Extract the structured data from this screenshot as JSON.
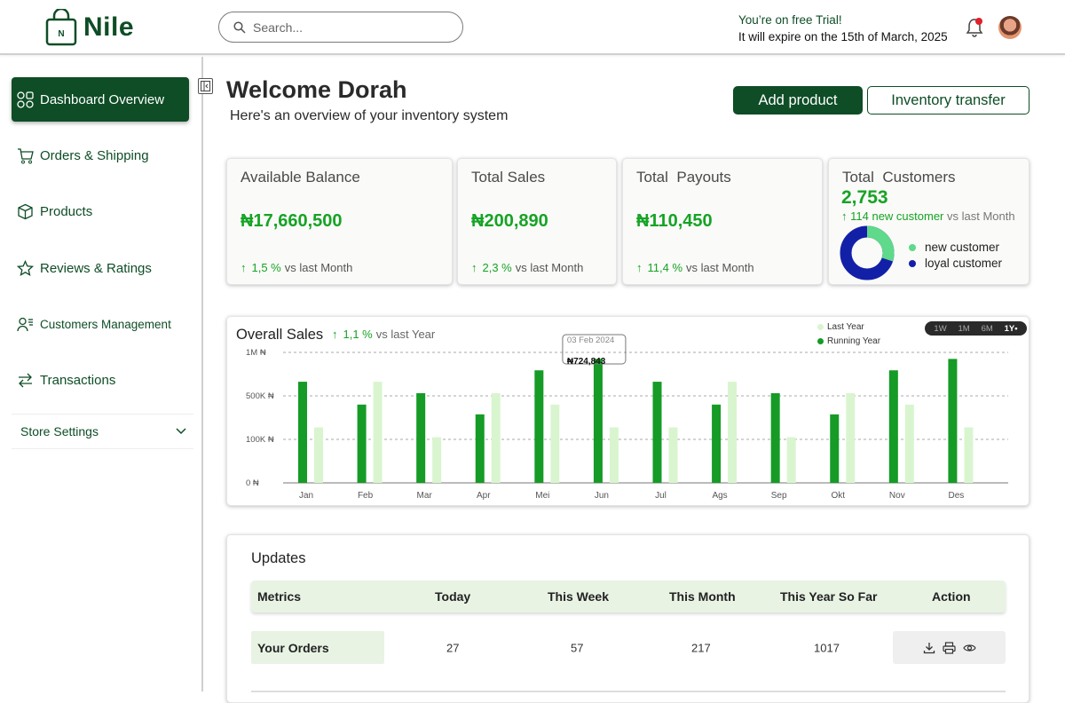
{
  "brand": {
    "name": "Nile",
    "logo_letter": "N",
    "color": "#0e4d26"
  },
  "header": {
    "search_placeholder": "Search...",
    "trial_line1": "You’re on free Trial!",
    "trial_line2": "It will expire on the 15th of March, 2025",
    "notification_icon": "bell-icon"
  },
  "sidebar": {
    "items": [
      {
        "label": "Dashboard Overview",
        "icon": "grid-icon",
        "active": true
      },
      {
        "label": "Orders & Shipping",
        "icon": "cart-icon"
      },
      {
        "label": "Products",
        "icon": "box-icon"
      },
      {
        "label": "Reviews & Ratings",
        "icon": "star-icon"
      },
      {
        "label": "Customers Management",
        "icon": "user-list-icon"
      },
      {
        "label": "Transactions",
        "icon": "transfer-icon"
      }
    ],
    "settings_label": "Store Settings"
  },
  "main": {
    "welcome": "Welcome Dorah",
    "subtitle": "Here's an overview of your inventory system",
    "add_product": "Add product",
    "inventory_transfer": "Inventory transfer"
  },
  "stats": [
    {
      "title": "Available Balance",
      "amount": "₦17,660,500",
      "pct": "1,5 %",
      "suffix": "vs last Month"
    },
    {
      "title": "Total Sales",
      "amount": "₦200,890",
      "pct": "2,3 %",
      "suffix": "vs last Month"
    },
    {
      "title": "Total  Payouts",
      "amount": "₦110,450",
      "pct": "11,4 %",
      "suffix": "vs last Month"
    }
  ],
  "customers": {
    "title": "Total  Customers",
    "count": "2,753",
    "new_text": "114 new customer",
    "suffix": "vs last Month",
    "legend_new": "new customer",
    "legend_loyal": "loyal customer",
    "new_fraction": 0.3,
    "colors": {
      "new": "#5fd98a",
      "loyal": "#1220a8"
    }
  },
  "chart": {
    "title": "Overall Sales",
    "pct": "1,1 %",
    "suffix": "vs last Year",
    "legend_last": "Last Year",
    "legend_running": "Running Year",
    "ranges": [
      "1W",
      "1M",
      "6M",
      "1Y"
    ],
    "tooltip_date": "03 Feb 2024",
    "tooltip_value": "₦724,843"
  },
  "chart_data": {
    "type": "bar",
    "categories": [
      "Jan",
      "Feb",
      "Mar",
      "Apr",
      "Mei",
      "Jun",
      "Jul",
      "Ags",
      "Sep",
      "Okt",
      "Nov",
      "Des"
    ],
    "series": [
      {
        "name": "Running Year",
        "color": "#159b26",
        "values": [
          620,
          480,
          550,
          420,
          690,
          760,
          620,
          480,
          550,
          420,
          690,
          760
        ]
      },
      {
        "name": "Last Year",
        "color": "#d9f5cf",
        "values": [
          340,
          620,
          280,
          550,
          480,
          340,
          340,
          620,
          280,
          550,
          480,
          340
        ]
      }
    ],
    "yticks": [
      "0 ₦",
      "100K ₦",
      "500K ₦",
      "1M ₦"
    ],
    "ylim": [
      0,
      800
    ],
    "grid": true
  },
  "updates": {
    "title": "Updates",
    "columns": [
      "Metrics",
      "Today",
      "This Week",
      "This Month",
      "This Year So Far",
      "Action"
    ],
    "rows": [
      {
        "metric": "Your Orders",
        "today": "27",
        "week": "57",
        "month": "217",
        "year": "1017"
      }
    ]
  }
}
